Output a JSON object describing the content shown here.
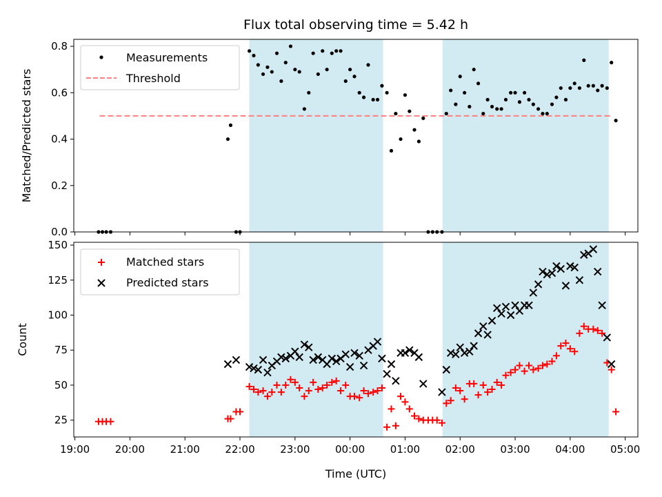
{
  "chart_data": {
    "title": "Flux total observing time = 5.42 h",
    "xlabel": "Time (UTC)",
    "x_ticks": [
      "19:00",
      "20:00",
      "21:00",
      "22:00",
      "23:00",
      "00:00",
      "01:00",
      "02:00",
      "03:00",
      "04:00",
      "05:00"
    ],
    "x_ticks_hours": [
      19,
      20,
      21,
      22,
      23,
      24,
      25,
      26,
      27,
      28,
      29
    ],
    "xlim_hours": [
      18.98,
      29.23
    ],
    "shaded_intervals_hours": [
      [
        22.17,
        24.6
      ],
      [
        25.68,
        28.7
      ]
    ],
    "colors": {
      "shade": "#add8e6",
      "matched": "#ff0000",
      "predicted": "#000000",
      "threshold": "#ff7f7f"
    },
    "panels": [
      {
        "type": "scatter",
        "ylabel": "Matched/Predicted stars",
        "ylim": [
          0,
          0.83
        ],
        "y_ticks": [
          "0.0",
          "0.2",
          "0.4",
          "0.6",
          "0.8"
        ],
        "y_tick_values": [
          0,
          0.2,
          0.4,
          0.6,
          0.8
        ],
        "threshold": {
          "name": "Threshold",
          "y": 0.5,
          "x_range_hours": [
            19.45,
            28.75
          ]
        },
        "series": [
          {
            "name": "Measurements",
            "marker": "dot",
            "x_hours": [
              19.43,
              19.5,
              19.57,
              19.65,
              21.78,
              21.83,
              21.93,
              22.0,
              22.17,
              22.25,
              22.33,
              22.42,
              22.5,
              22.58,
              22.67,
              22.75,
              22.83,
              22.92,
              23.0,
              23.08,
              23.17,
              23.25,
              23.33,
              23.42,
              23.5,
              23.58,
              23.67,
              23.75,
              23.83,
              23.92,
              24.0,
              24.08,
              24.17,
              24.25,
              24.33,
              24.42,
              24.5,
              24.58,
              24.67,
              24.75,
              24.83,
              24.92,
              25.0,
              25.08,
              25.17,
              25.25,
              25.33,
              25.42,
              25.5,
              25.58,
              25.67,
              25.75,
              25.83,
              25.92,
              26.0,
              26.08,
              26.17,
              26.25,
              26.33,
              26.42,
              26.5,
              26.58,
              26.67,
              26.75,
              26.83,
              26.92,
              27.0,
              27.08,
              27.17,
              27.25,
              27.33,
              27.42,
              27.5,
              27.58,
              27.67,
              27.75,
              27.83,
              27.92,
              28.0,
              28.08,
              28.17,
              28.25,
              28.33,
              28.42,
              28.5,
              28.58,
              28.67,
              28.75,
              28.83
            ],
            "y": [
              0,
              0,
              0,
              0,
              0.4,
              0.46,
              0,
              0,
              0.78,
              0.76,
              0.72,
              0.68,
              0.71,
              0.69,
              0.77,
              0.65,
              0.73,
              0.8,
              0.7,
              0.69,
              0.53,
              0.6,
              0.77,
              0.68,
              0.78,
              0.7,
              0.77,
              0.78,
              0.78,
              0.65,
              0.7,
              0.67,
              0.6,
              0.58,
              0.72,
              0.57,
              0.57,
              0.63,
              0.6,
              0.35,
              0.51,
              0.4,
              0.59,
              0.52,
              0.44,
              0.39,
              0.49,
              0,
              0,
              0,
              0,
              0.51,
              0.61,
              0.55,
              0.67,
              0.6,
              0.54,
              0.7,
              0.64,
              0.51,
              0.57,
              0.54,
              0.53,
              0.53,
              0.57,
              0.6,
              0.6,
              0.56,
              0.6,
              0.57,
              0.55,
              0.53,
              0.51,
              0.51,
              0.55,
              0.58,
              0.62,
              0.57,
              0.62,
              0.64,
              0.62,
              0.74,
              0.63,
              0.63,
              0.61,
              0.63,
              0.62,
              0.73,
              0.48
            ]
          }
        ]
      },
      {
        "type": "scatter",
        "ylabel": "Count",
        "ylim": [
          13,
          152
        ],
        "y_ticks": [
          "25",
          "50",
          "75",
          "100",
          "125",
          "150"
        ],
        "y_tick_values": [
          25,
          50,
          75,
          100,
          125,
          150
        ],
        "series": [
          {
            "name": "Matched stars",
            "marker": "plus",
            "x_hours": [
              19.43,
              19.5,
              19.57,
              19.65,
              21.78,
              21.83,
              21.93,
              22.0,
              22.17,
              22.25,
              22.33,
              22.42,
              22.5,
              22.58,
              22.67,
              22.75,
              22.83,
              22.92,
              23.0,
              23.08,
              23.17,
              23.25,
              23.33,
              23.42,
              23.5,
              23.58,
              23.67,
              23.75,
              23.83,
              23.92,
              24.0,
              24.08,
              24.17,
              24.25,
              24.33,
              24.42,
              24.5,
              24.58,
              24.67,
              24.75,
              24.83,
              24.92,
              25.0,
              25.08,
              25.17,
              25.25,
              25.33,
              25.42,
              25.5,
              25.58,
              25.67,
              25.75,
              25.83,
              25.92,
              26.0,
              26.08,
              26.17,
              26.25,
              26.33,
              26.42,
              26.5,
              26.58,
              26.67,
              26.75,
              26.83,
              26.92,
              27.0,
              27.08,
              27.17,
              27.25,
              27.33,
              27.42,
              27.5,
              27.58,
              27.67,
              27.75,
              27.83,
              27.92,
              28.0,
              28.08,
              28.17,
              28.25,
              28.33,
              28.42,
              28.5,
              28.58,
              28.67,
              28.75,
              28.83
            ],
            "y": [
              24,
              24,
              24,
              24,
              26,
              26,
              31,
              31,
              49,
              47,
              45,
              46,
              42,
              45,
              50,
              45,
              50,
              54,
              52,
              48,
              42,
              46,
              52,
              47,
              48,
              50,
              52,
              53,
              46,
              50,
              42,
              42,
              41,
              46,
              44,
              45,
              46,
              48,
              20,
              33,
              21,
              42,
              38,
              33,
              28,
              26,
              25,
              25,
              25,
              25,
              23,
              37,
              39,
              48,
              46,
              40,
              51,
              51,
              43,
              50,
              45,
              47,
              52,
              50,
              57,
              59,
              61,
              64,
              60,
              64,
              61,
              62,
              64,
              65,
              67,
              71,
              78,
              80,
              76,
              74,
              87,
              92,
              90,
              90,
              89,
              87,
              66,
              61,
              31
            ]
          },
          {
            "name": "Predicted stars",
            "marker": "cross",
            "x_hours": [
              21.78,
              21.93,
              22.17,
              22.25,
              22.33,
              22.42,
              22.5,
              22.58,
              22.67,
              22.75,
              22.83,
              22.92,
              23.0,
              23.08,
              23.17,
              23.25,
              23.33,
              23.42,
              23.5,
              23.58,
              23.67,
              23.75,
              23.83,
              23.92,
              24.0,
              24.08,
              24.17,
              24.25,
              24.33,
              24.42,
              24.5,
              24.58,
              24.67,
              24.75,
              24.83,
              24.92,
              25.0,
              25.08,
              25.17,
              25.25,
              25.33,
              25.67,
              25.75,
              25.83,
              25.92,
              26.0,
              26.08,
              26.17,
              26.25,
              26.33,
              26.42,
              26.5,
              26.58,
              26.67,
              26.75,
              26.83,
              26.92,
              27.0,
              27.08,
              27.17,
              27.25,
              27.33,
              27.42,
              27.5,
              27.58,
              27.67,
              27.75,
              27.83,
              27.92,
              28.0,
              28.08,
              28.17,
              28.25,
              28.33,
              28.42,
              28.5,
              28.58,
              28.67,
              28.75
            ],
            "y": [
              65,
              68,
              63,
              62,
              61,
              68,
              59,
              64,
              67,
              70,
              69,
              71,
              74,
              70,
              79,
              77,
              68,
              70,
              68,
              65,
              69,
              67,
              69,
              72,
              63,
              73,
              71,
              64,
              75,
              78,
              81,
              69,
              58,
              65,
              53,
              73,
              73,
              75,
              73,
              70,
              51,
              45,
              61,
              73,
              72,
              77,
              73,
              74,
              78,
              87,
              92,
              86,
              96,
              105,
              101,
              106,
              100,
              107,
              103,
              107,
              107,
              116,
              122,
              131,
              129,
              130,
              135,
              133,
              121,
              135,
              134,
              125,
              143,
              144,
              147,
              131,
              107,
              84,
              65
            ]
          }
        ]
      }
    ]
  }
}
